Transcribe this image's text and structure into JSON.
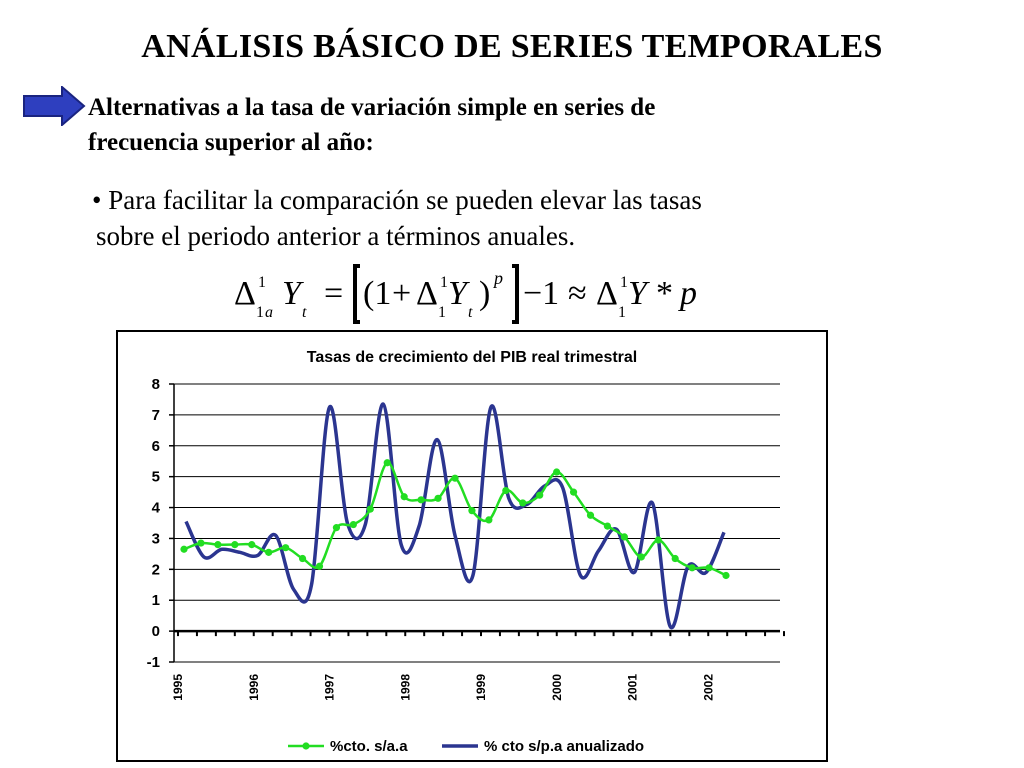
{
  "slide": {
    "title": "ANÁLISIS BÁSICO DE SERIES TEMPORALES",
    "subtitle_line1": "Alternativas a la tasa de variación simple en series de",
    "subtitle_line2": "frecuencia superior al año:",
    "bullet_line1": "• Para facilitar la comparación se pueden elevar las tasas",
    "bullet_line2": "sobre el periodo anterior a términos anuales.",
    "formula_text": "Δ¹₁ₐYₜ = [(1 + Δ¹₁Yₜ)ᵖ] − 1 ≈ Δ¹₁Y * p",
    "arrow_color": "#2e3fbf"
  },
  "chart_data": {
    "type": "line",
    "title": "Tasas de crecimiento del PIB real trimestral",
    "xlabel": "",
    "ylabel": "",
    "ylim": [
      -1,
      8
    ],
    "yticks": [
      "-1",
      "0",
      "1",
      "2",
      "3",
      "4",
      "5",
      "6",
      "7",
      "8"
    ],
    "x_tick_labels": [
      "1995",
      "1996",
      "1997",
      "1998",
      "1999",
      "2000",
      "2001",
      "2002"
    ],
    "quarters_per_year": 4,
    "grid": "horizontal",
    "legend_position": "bottom",
    "series": [
      {
        "name": "%cto. s/a.a",
        "color": "#22dd22",
        "marker": "circle",
        "values": [
          2.65,
          2.85,
          2.8,
          2.8,
          2.8,
          2.55,
          2.7,
          2.35,
          2.1,
          3.35,
          3.45,
          3.95,
          5.45,
          4.35,
          4.25,
          4.3,
          4.95,
          3.9,
          3.6,
          4.55,
          4.15,
          4.4,
          5.15,
          4.5,
          3.75,
          3.4,
          3.05,
          2.4,
          2.95,
          2.35,
          2.05,
          2.05,
          1.8
        ]
      },
      {
        "name": "% cto s/p.a anualizado",
        "color": "#2b3590",
        "marker": "none",
        "values": [
          3.55,
          2.4,
          2.65,
          2.55,
          2.45,
          3.1,
          1.35,
          1.5,
          7.25,
          3.5,
          3.45,
          7.35,
          2.8,
          3.4,
          6.2,
          3.1,
          1.8,
          7.25,
          4.3,
          4.1,
          4.7,
          4.65,
          1.8,
          2.6,
          3.3,
          1.9,
          4.15,
          0.15,
          2.1,
          1.9,
          3.2
        ]
      }
    ]
  }
}
